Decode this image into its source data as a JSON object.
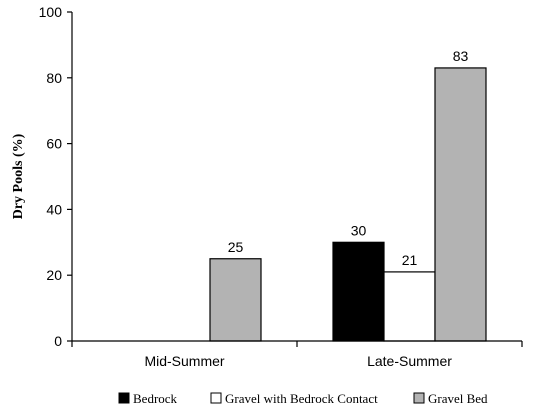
{
  "chart_data": {
    "type": "bar",
    "title": "",
    "xlabel": "",
    "ylabel": "Dry Pools (%)",
    "ylim": [
      0,
      100
    ],
    "yticks": [
      0,
      20,
      40,
      60,
      80,
      100
    ],
    "grid": false,
    "legend_position": "bottom",
    "categories": [
      "Mid-Summer",
      "Late-Summer"
    ],
    "series": [
      {
        "name": "Bedrock",
        "color": "#000000",
        "values": [
          null,
          30
        ],
        "labels": [
          "",
          "30"
        ]
      },
      {
        "name": "Gravel with Bedrock Contact",
        "color": "#ffffff",
        "values": [
          null,
          21
        ],
        "labels": [
          "",
          "21"
        ]
      },
      {
        "name": "Gravel Bed",
        "color": "#b3b3b3",
        "values": [
          25,
          83
        ],
        "labels": [
          "25",
          "83"
        ]
      }
    ]
  }
}
